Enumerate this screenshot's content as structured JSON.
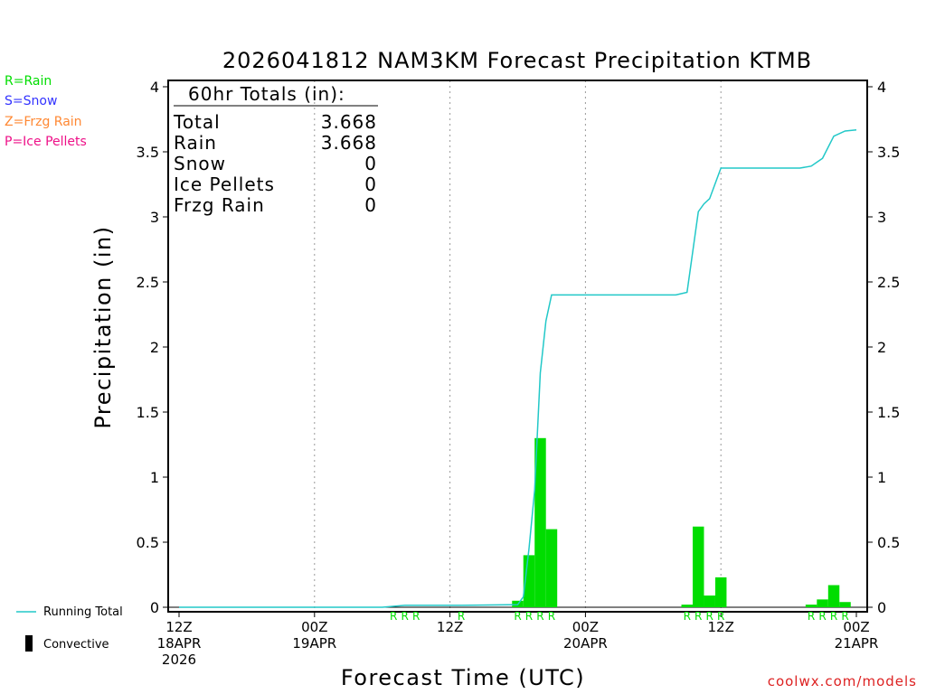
{
  "colors": {
    "rain": "#00dd00",
    "snow": "#3333ff",
    "freezing_rain": "#ff8833",
    "ice_pellets": "#ee1188",
    "running_total": "#22c8c8",
    "convective": "#000000",
    "credit": "#dd2222"
  },
  "type_legend": [
    {
      "label": "R=Rain",
      "color_key": "rain"
    },
    {
      "label": "S=Snow",
      "color_key": "snow"
    },
    {
      "label": "Z=Frzg Rain",
      "color_key": "freezing_rain"
    },
    {
      "label": "P=Ice Pellets",
      "color_key": "ice_pellets"
    }
  ],
  "series_legend": {
    "running_total": "Running Total",
    "convective": "Convective"
  },
  "totals_box": {
    "title": "60hr Totals (in):",
    "rows": [
      {
        "label": "Total",
        "value": "3.668"
      },
      {
        "label": "Rain",
        "value": "3.668"
      },
      {
        "label": "Snow",
        "value": "0"
      },
      {
        "label": "Ice Pellets",
        "value": "0"
      },
      {
        "label": "Frzg Rain",
        "value": "0"
      }
    ]
  },
  "credit": "coolwx.com/models",
  "chart_data": {
    "type": "bar",
    "title": "2026041812 NAM3KM Forecast Precipitation KTMB",
    "xlabel": "Forecast Time (UTC)",
    "ylabel": "Precipitation (in)",
    "ylim": [
      0,
      4
    ],
    "xlim_hours": [
      0,
      60
    ],
    "y_ticks": [
      "0",
      "0.5",
      "1",
      "1.5",
      "2",
      "2.5",
      "3",
      "3.5",
      "4"
    ],
    "x_ticks": [
      {
        "hour": 0,
        "lines": [
          "12Z",
          "18APR",
          "2026"
        ]
      },
      {
        "hour": 12,
        "lines": [
          "00Z",
          "19APR"
        ]
      },
      {
        "hour": 24,
        "lines": [
          "12Z"
        ]
      },
      {
        "hour": 36,
        "lines": [
          "00Z",
          "20APR"
        ]
      },
      {
        "hour": 48,
        "lines": [
          "12Z"
        ]
      },
      {
        "hour": 60,
        "lines": [
          "00Z",
          "21APR"
        ]
      }
    ],
    "grid": "vertical dotted at 00Z and 12Z",
    "bars": [
      {
        "hour": 30,
        "value": 0.05
      },
      {
        "hour": 31,
        "value": 0.4
      },
      {
        "hour": 32,
        "value": 1.3
      },
      {
        "hour": 33,
        "value": 0.6
      },
      {
        "hour": 45,
        "value": 0.02
      },
      {
        "hour": 46,
        "value": 0.62
      },
      {
        "hour": 47,
        "value": 0.09
      },
      {
        "hour": 48,
        "value": 0.23
      },
      {
        "hour": 56,
        "value": 0.02
      },
      {
        "hour": 57,
        "value": 0.06
      },
      {
        "hour": 58,
        "value": 0.17
      },
      {
        "hour": 59,
        "value": 0.04
      }
    ],
    "running_total": {
      "name": "Running Total",
      "x": [
        0,
        18,
        20,
        25,
        30,
        30.5,
        31,
        31.5,
        32,
        32.5,
        33,
        44,
        45,
        46,
        46.5,
        47,
        48,
        49,
        54,
        55,
        56,
        56.5,
        57,
        58,
        59,
        60
      ],
      "y": [
        0,
        0,
        0.015,
        0.015,
        0.02,
        0.08,
        0.45,
        0.9,
        1.8,
        2.2,
        2.4,
        2.4,
        2.42,
        3.04,
        3.1,
        3.14,
        3.375,
        3.375,
        3.375,
        3.375,
        3.39,
        3.42,
        3.45,
        3.62,
        3.66,
        3.668
      ]
    },
    "precip_type_markers": [
      {
        "hour": 19,
        "type": "R"
      },
      {
        "hour": 20,
        "type": "R"
      },
      {
        "hour": 21,
        "type": "R"
      },
      {
        "hour": 25,
        "type": "R"
      },
      {
        "hour": 30,
        "type": "R"
      },
      {
        "hour": 31,
        "type": "R"
      },
      {
        "hour": 32,
        "type": "R"
      },
      {
        "hour": 33,
        "type": "R"
      },
      {
        "hour": 45,
        "type": "R"
      },
      {
        "hour": 46,
        "type": "R"
      },
      {
        "hour": 47,
        "type": "R"
      },
      {
        "hour": 48,
        "type": "R"
      },
      {
        "hour": 56,
        "type": "R"
      },
      {
        "hour": 57,
        "type": "R"
      },
      {
        "hour": 58,
        "type": "R"
      },
      {
        "hour": 59,
        "type": "R"
      }
    ]
  }
}
